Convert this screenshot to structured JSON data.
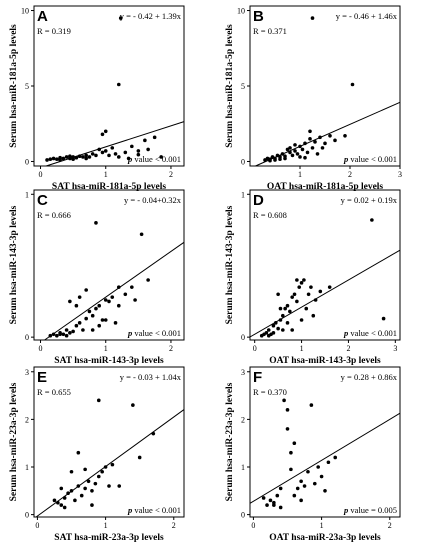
{
  "chart_data": [
    {
      "type": "scatter",
      "panel_label": "A",
      "equation": "y = - 0.42 + 1.39x",
      "r_text": "R = 0.319",
      "p_prefix": "p",
      "p_suffix": " value < 0.001",
      "xlabel": "SAT hsa-miR-181a-5p levels",
      "ylabel": "Serum hsa-miR-181a-5p levels",
      "xlim": [
        -0.1,
        2.2
      ],
      "ylim": [
        -0.3,
        10.3
      ],
      "xticks": [
        0,
        1,
        2
      ],
      "yticks": [
        0,
        5,
        10
      ],
      "line": {
        "intercept": -0.42,
        "slope": 1.39
      },
      "points": [
        [
          0.1,
          0.1
        ],
        [
          0.15,
          0.15
        ],
        [
          0.2,
          0.2
        ],
        [
          0.25,
          0.15
        ],
        [
          0.3,
          0.25
        ],
        [
          0.35,
          0.2
        ],
        [
          0.4,
          0.3
        ],
        [
          0.45,
          0.2
        ],
        [
          0.5,
          0.3
        ],
        [
          0.55,
          0.25
        ],
        [
          0.6,
          0.35
        ],
        [
          0.65,
          0.3
        ],
        [
          0.7,
          0.4
        ],
        [
          0.75,
          0.3
        ],
        [
          0.8,
          0.5
        ],
        [
          0.85,
          0.4
        ],
        [
          0.9,
          0.8
        ],
        [
          0.95,
          0.6
        ],
        [
          1.0,
          0.7
        ],
        [
          1.05,
          0.4
        ],
        [
          1.1,
          0.9
        ],
        [
          1.15,
          0.5
        ],
        [
          1.2,
          0.3
        ],
        [
          1.3,
          0.6
        ],
        [
          1.4,
          1.0
        ],
        [
          1.5,
          0.7
        ],
        [
          1.6,
          1.4
        ],
        [
          1.65,
          0.8
        ],
        [
          1.75,
          1.6
        ],
        [
          1.85,
          0.3
        ],
        [
          1.2,
          5.1
        ],
        [
          1.23,
          9.5
        ],
        [
          0.5,
          0.15
        ],
        [
          0.7,
          0.2
        ],
        [
          1.0,
          2.0
        ],
        [
          0.95,
          1.8
        ],
        [
          0.3,
          0.1
        ],
        [
          0.45,
          0.35
        ],
        [
          1.35,
          0.2
        ],
        [
          1.5,
          0.45
        ]
      ]
    },
    {
      "type": "scatter",
      "panel_label": "B",
      "equation": "y = - 0.46 + 1.46x",
      "r_text": "R = 0.371",
      "p_prefix": "p",
      "p_suffix": " value < 0.001",
      "xlabel": "OAT hsa-miR-181a-5p levels",
      "ylabel": "Serum hsa-miR-181a-5p levels",
      "xlim": [
        0,
        3
      ],
      "ylim": [
        -0.3,
        10.3
      ],
      "xticks": [
        1,
        2,
        3
      ],
      "yticks": [
        0,
        5,
        10
      ],
      "line": {
        "intercept": -0.46,
        "slope": 1.46
      },
      "points": [
        [
          0.3,
          0.1
        ],
        [
          0.35,
          0.2
        ],
        [
          0.4,
          0.15
        ],
        [
          0.45,
          0.3
        ],
        [
          0.5,
          0.2
        ],
        [
          0.55,
          0.4
        ],
        [
          0.6,
          0.3
        ],
        [
          0.65,
          0.5
        ],
        [
          0.7,
          0.35
        ],
        [
          0.75,
          0.8
        ],
        [
          0.8,
          0.6
        ],
        [
          0.85,
          0.4
        ],
        [
          0.9,
          0.7
        ],
        [
          0.95,
          0.5
        ],
        [
          1.0,
          1.0
        ],
        [
          1.05,
          0.8
        ],
        [
          1.1,
          1.2
        ],
        [
          1.15,
          0.6
        ],
        [
          1.2,
          1.5
        ],
        [
          1.25,
          0.9
        ],
        [
          1.3,
          1.3
        ],
        [
          1.4,
          1.6
        ],
        [
          1.45,
          0.9
        ],
        [
          1.5,
          1.2
        ],
        [
          1.6,
          1.7
        ],
        [
          1.7,
          1.4
        ],
        [
          1.9,
          1.7
        ],
        [
          2.05,
          5.1
        ],
        [
          1.25,
          9.5
        ],
        [
          0.5,
          0.1
        ],
        [
          0.6,
          0.15
        ],
        [
          0.7,
          0.2
        ],
        [
          1.0,
          0.3
        ],
        [
          1.1,
          0.25
        ],
        [
          0.4,
          0.05
        ],
        [
          0.8,
          0.9
        ],
        [
          1.2,
          2.0
        ],
        [
          0.9,
          1.1
        ],
        [
          1.35,
          0.5
        ]
      ]
    },
    {
      "type": "scatter",
      "panel_label": "C",
      "equation": "y = - 0.04+0.32x",
      "r_text": "R = 0.666",
      "p_prefix": "p",
      "p_suffix": " value < 0.001",
      "xlabel": "SAT hsa-miR-143-3p levels",
      "ylabel": "Serum hsa-miR-143-3p levels",
      "xlim": [
        -0.1,
        2.2
      ],
      "ylim": [
        -0.02,
        1.03
      ],
      "xticks": [
        0,
        1,
        2
      ],
      "yticks": [
        0,
        1
      ],
      "line": {
        "intercept": -0.04,
        "slope": 0.32
      },
      "points": [
        [
          0.15,
          0.01
        ],
        [
          0.2,
          0.02
        ],
        [
          0.25,
          0.01
        ],
        [
          0.3,
          0.03
        ],
        [
          0.35,
          0.02
        ],
        [
          0.4,
          0.05
        ],
        [
          0.45,
          0.03
        ],
        [
          0.5,
          0.04
        ],
        [
          0.55,
          0.08
        ],
        [
          0.6,
          0.1
        ],
        [
          0.65,
          0.05
        ],
        [
          0.7,
          0.13
        ],
        [
          0.75,
          0.18
        ],
        [
          0.8,
          0.15
        ],
        [
          0.85,
          0.2
        ],
        [
          0.9,
          0.22
        ],
        [
          0.95,
          0.12
        ],
        [
          1.0,
          0.26
        ],
        [
          1.05,
          0.25
        ],
        [
          1.1,
          0.28
        ],
        [
          1.15,
          0.1
        ],
        [
          1.2,
          0.22
        ],
        [
          1.3,
          0.3
        ],
        [
          1.4,
          0.35
        ],
        [
          1.45,
          0.26
        ],
        [
          1.55,
          0.72
        ],
        [
          1.65,
          0.4
        ],
        [
          0.85,
          0.8
        ],
        [
          0.45,
          0.25
        ],
        [
          0.55,
          0.22
        ],
        [
          0.6,
          0.28
        ],
        [
          0.7,
          0.33
        ],
        [
          0.8,
          0.05
        ],
        [
          0.9,
          0.08
        ],
        [
          1.0,
          0.12
        ],
        [
          1.2,
          0.35
        ],
        [
          0.3,
          0.02
        ],
        [
          0.4,
          0.01
        ]
      ]
    },
    {
      "type": "scatter",
      "panel_label": "D",
      "equation": "y = 0.02 + 0.19x",
      "r_text": "R = 0.608",
      "p_prefix": "p",
      "p_suffix": " value < 0.001",
      "xlabel": "OAT hsa-miR-143-3p levels",
      "ylabel": "Serum hsa-miR-143-3p levels",
      "xlim": [
        -0.1,
        3.1
      ],
      "ylim": [
        -0.02,
        1.03
      ],
      "xticks": [
        0,
        1,
        2,
        3
      ],
      "yticks": [
        0,
        1
      ],
      "line": {
        "intercept": 0.02,
        "slope": 0.19
      },
      "points": [
        [
          0.15,
          0.01
        ],
        [
          0.2,
          0.02
        ],
        [
          0.25,
          0.03
        ],
        [
          0.3,
          0.05
        ],
        [
          0.35,
          0.02
        ],
        [
          0.4,
          0.08
        ],
        [
          0.45,
          0.1
        ],
        [
          0.5,
          0.06
        ],
        [
          0.55,
          0.12
        ],
        [
          0.6,
          0.15
        ],
        [
          0.65,
          0.2
        ],
        [
          0.7,
          0.22
        ],
        [
          0.75,
          0.18
        ],
        [
          0.8,
          0.28
        ],
        [
          0.85,
          0.3
        ],
        [
          0.9,
          0.25
        ],
        [
          0.95,
          0.35
        ],
        [
          1.0,
          0.38
        ],
        [
          1.05,
          0.4
        ],
        [
          1.1,
          0.2
        ],
        [
          1.15,
          0.3
        ],
        [
          1.2,
          0.35
        ],
        [
          1.3,
          0.26
        ],
        [
          1.4,
          0.32
        ],
        [
          1.6,
          0.35
        ],
        [
          2.5,
          0.82
        ],
        [
          2.75,
          0.13
        ],
        [
          0.9,
          0.4
        ],
        [
          0.7,
          0.1
        ],
        [
          0.6,
          0.05
        ],
        [
          0.5,
          0.3
        ],
        [
          1.0,
          0.12
        ],
        [
          0.8,
          0.05
        ],
        [
          0.3,
          0.01
        ],
        [
          0.4,
          0.03
        ],
        [
          0.55,
          0.2
        ],
        [
          1.25,
          0.15
        ]
      ]
    },
    {
      "type": "scatter",
      "panel_label": "E",
      "equation": "y = - 0.03 + 1.04x",
      "r_text": "R = 0.655",
      "p_prefix": "p",
      "p_suffix": " value < 0.001",
      "xlabel": "SAT hsa-miR-23a-3p levels",
      "ylabel": "Serum hsa-miR-23a-3p levels",
      "xlim": [
        -0.05,
        2.15
      ],
      "ylim": [
        -0.05,
        3.1
      ],
      "xticks": [
        0,
        1,
        2
      ],
      "yticks": [
        0,
        1,
        2,
        3
      ],
      "line": {
        "intercept": -0.03,
        "slope": 1.04
      },
      "points": [
        [
          0.25,
          0.3
        ],
        [
          0.3,
          0.25
        ],
        [
          0.35,
          0.2
        ],
        [
          0.4,
          0.35
        ],
        [
          0.45,
          0.45
        ],
        [
          0.5,
          0.5
        ],
        [
          0.55,
          0.3
        ],
        [
          0.6,
          0.6
        ],
        [
          0.65,
          0.4
        ],
        [
          0.7,
          0.55
        ],
        [
          0.75,
          0.7
        ],
        [
          0.8,
          0.5
        ],
        [
          0.85,
          0.65
        ],
        [
          0.9,
          0.8
        ],
        [
          0.95,
          0.9
        ],
        [
          1.0,
          1.0
        ],
        [
          1.05,
          0.6
        ],
        [
          1.1,
          1.05
        ],
        [
          1.2,
          0.6
        ],
        [
          1.4,
          2.3
        ],
        [
          1.5,
          1.2
        ],
        [
          1.7,
          1.7
        ],
        [
          0.9,
          2.4
        ],
        [
          0.6,
          1.3
        ],
        [
          0.5,
          0.9
        ],
        [
          0.7,
          0.95
        ],
        [
          0.8,
          0.2
        ],
        [
          0.4,
          0.15
        ],
        [
          0.35,
          0.55
        ]
      ]
    },
    {
      "type": "scatter",
      "panel_label": "F",
      "equation": "y = 0.28 + 0.86x",
      "r_text": "R = 0.370",
      "p_prefix": "p",
      "p_suffix": " value = 0.005",
      "xlabel": "OAT hsa-miR-23a-3p levels",
      "ylabel": "Serum hsa-miR-23a-3p levels",
      "xlim": [
        -0.05,
        2.15
      ],
      "ylim": [
        -0.05,
        3.1
      ],
      "xticks": [
        0,
        1,
        2
      ],
      "yticks": [
        0,
        1,
        2,
        3
      ],
      "line": {
        "intercept": 0.28,
        "slope": 0.86
      },
      "points": [
        [
          0.15,
          0.35
        ],
        [
          0.2,
          0.2
        ],
        [
          0.25,
          0.3
        ],
        [
          0.3,
          0.25
        ],
        [
          0.35,
          0.4
        ],
        [
          0.4,
          0.55
        ],
        [
          0.45,
          2.4
        ],
        [
          0.5,
          2.2
        ],
        [
          0.55,
          1.3
        ],
        [
          0.6,
          1.5
        ],
        [
          0.65,
          0.55
        ],
        [
          0.7,
          0.7
        ],
        [
          0.75,
          0.6
        ],
        [
          0.8,
          0.9
        ],
        [
          0.85,
          2.3
        ],
        [
          0.9,
          0.65
        ],
        [
          0.95,
          1.0
        ],
        [
          1.0,
          0.8
        ],
        [
          1.05,
          0.5
        ],
        [
          1.1,
          1.1
        ],
        [
          1.2,
          1.2
        ],
        [
          0.5,
          1.8
        ],
        [
          0.55,
          0.95
        ],
        [
          0.6,
          0.4
        ],
        [
          0.4,
          0.15
        ],
        [
          0.3,
          0.2
        ],
        [
          0.7,
          0.3
        ]
      ]
    }
  ]
}
